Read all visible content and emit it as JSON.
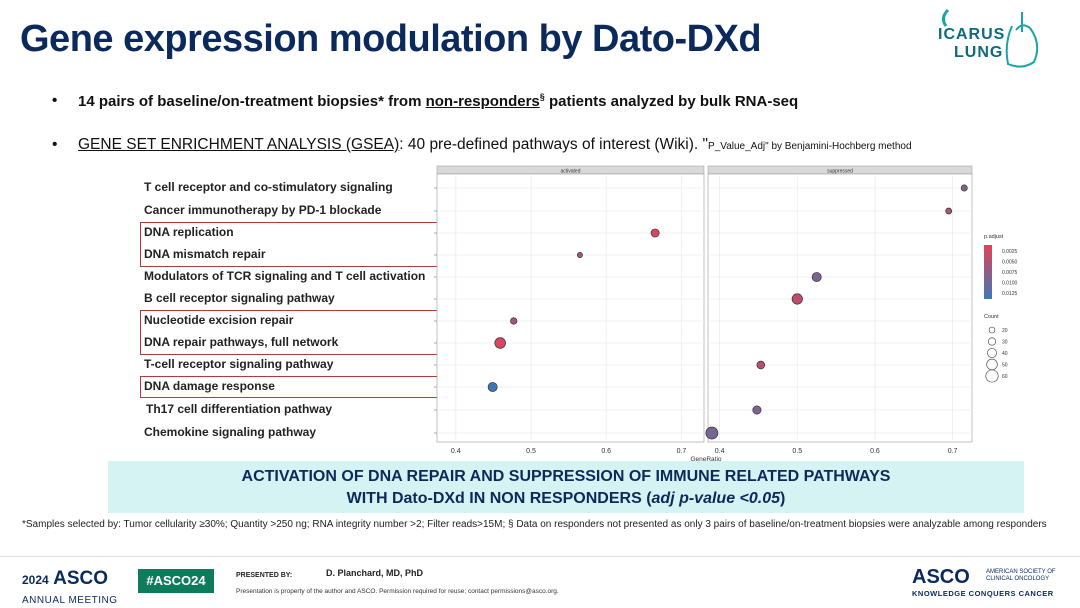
{
  "slide": {
    "title": "Gene expression modulation by Dato-DXd",
    "logo_line1": "ICARUS",
    "logo_line2": "LUNG",
    "bullet1_a": "14 pairs of baseline/on-treatment biopsies* from ",
    "bullet1_u": "non-responders",
    "bullet1_sup": "§",
    "bullet1_b": " patients analyzed by bulk RNA-seq",
    "bullet2_u": "GENE SET ENRICHMENT ANALYSIS (GSEA)",
    "bullet2_a": ": 40 pre-defined pathways of interest (Wiki). \"",
    "bullet2_small": "P_Value_Adj\"  by Benjamini-Hochberg  method",
    "banner_line1": "ACTIVATION OF DNA REPAIR AND SUPPRESSION OF IMMUNE RELATED PATHWAYS",
    "banner_line2_a": "WITH Dato-DXd IN NON RESPONDERS (",
    "banner_line2_i": "adj p-value <0.05",
    "banner_line2_b": ")",
    "footnote": "*Samples selected by: Tumor cellularity ≥30%; Quantity >250 ng; RNA integrity number >2; Filter reads>15M; § Data on responders not presented as only 3 pairs of baseline/on-treatment biopsies were analyzable among responders",
    "footer_year": "2024",
    "footer_asco": "ASCO",
    "footer_meeting": "ANNUAL MEETING",
    "hashtag": "#ASCO24",
    "presented_by": "PRESENTED BY:",
    "presenter": "D. Planchard, MD, PhD",
    "property_note": "Presentation is property of the author and ASCO. Permission required for reuse; contact permissions@asco.org.",
    "asco_right": "ASCO",
    "asco_society": "AMERICAN SOCIETY OF CLINICAL ONCOLOGY",
    "asco_tagline": "KNOWLEDGE CONQUERS CANCER"
  },
  "chart_data": {
    "type": "scatter",
    "xlabel": "GeneRatio",
    "facets": [
      "activated",
      "suppressed"
    ],
    "facet_xlim": [
      [
        0.375,
        0.73
      ],
      [
        0.385,
        0.725
      ]
    ],
    "facet_ticks": [
      [
        0.4,
        0.5,
        0.6,
        0.7
      ],
      [
        0.4,
        0.5,
        0.6,
        0.7
      ]
    ],
    "categories": [
      "T cell receptor and co-stimulatory signaling",
      "Cancer immunotherapy by PD-1 blockade",
      "DNA replication",
      "DNA mismatch repair",
      "Modulators of TCR signaling and T cell activation",
      "B cell receptor signaling pathway",
      "Nucleotide excision repair",
      "DNA repair pathways, full network",
      "T-cell receptor signaling pathway",
      " DNA damage response",
      "Th17 cell differentiation pathway",
      "Chemokine signaling pathway"
    ],
    "highlighted": [
      [
        2,
        3
      ],
      [
        6,
        7
      ],
      [
        9,
        9
      ]
    ],
    "points": [
      {
        "category": "T cell receptor and co-stimulatory signaling",
        "facet": "suppressed",
        "x": 0.715,
        "count": 22,
        "p_adjust": 0.008
      },
      {
        "category": "Cancer immunotherapy by PD-1 blockade",
        "facet": "suppressed",
        "x": 0.695,
        "count": 21,
        "p_adjust": 0.006
      },
      {
        "category": "DNA replication",
        "facet": "activated",
        "x": 0.665,
        "count": 34,
        "p_adjust": 0.003
      },
      {
        "category": "DNA mismatch repair",
        "facet": "activated",
        "x": 0.565,
        "count": 16,
        "p_adjust": 0.006
      },
      {
        "category": "Modulators of TCR signaling and T cell activation",
        "facet": "suppressed",
        "x": 0.525,
        "count": 40,
        "p_adjust": 0.0085
      },
      {
        "category": "B cell receptor signaling pathway",
        "facet": "suppressed",
        "x": 0.5,
        "count": 48,
        "p_adjust": 0.0045
      },
      {
        "category": "Nucleotide excision repair",
        "facet": "activated",
        "x": 0.477,
        "count": 24,
        "p_adjust": 0.0065
      },
      {
        "category": "DNA repair pathways, full network",
        "facet": "activated",
        "x": 0.459,
        "count": 50,
        "p_adjust": 0.003
      },
      {
        "category": "T-cell receptor signaling pathway",
        "facet": "suppressed",
        "x": 0.453,
        "count": 32,
        "p_adjust": 0.005
      },
      {
        "category": " DNA damage response",
        "facet": "activated",
        "x": 0.449,
        "count": 40,
        "p_adjust": 0.013
      },
      {
        "category": "Th17 cell differentiation pathway",
        "facet": "suppressed",
        "x": 0.448,
        "count": 35,
        "p_adjust": 0.0085
      },
      {
        "category": "Chemokine signaling pathway",
        "facet": "suppressed",
        "x": 0.39,
        "count": 58,
        "p_adjust": 0.009
      }
    ],
    "color_legend": {
      "title": "p.adjust",
      "labels": [
        "0.0025",
        "0.0050",
        "0.0075",
        "0.0100",
        "0.0125"
      ],
      "low_color": "#e0435a",
      "high_color": "#3d78b5"
    },
    "size_legend": {
      "title": "Count",
      "labels": [
        "20",
        "30",
        "40",
        "50",
        "60"
      ]
    }
  }
}
